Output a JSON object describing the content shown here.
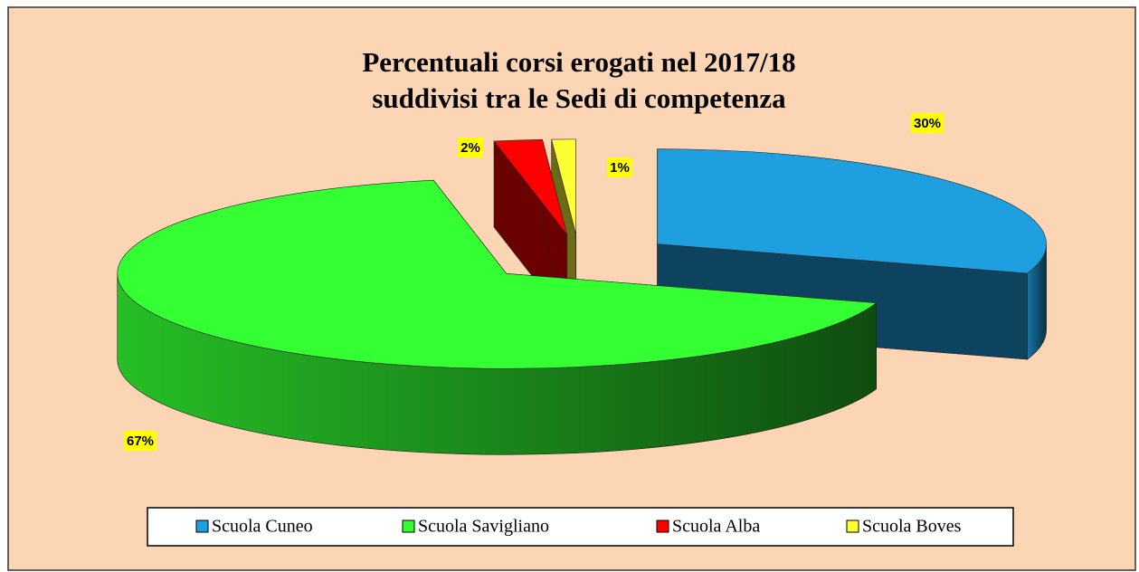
{
  "chart_data": {
    "type": "pie",
    "title": [
      "Percentuali corsi erogati nel 2017/18",
      "suddivisi tra le Sedi di competenza"
    ],
    "categories": [
      "Scuola Cuneo",
      "Scuola Savigliano",
      "Scuola Alba",
      "Scuola Boves"
    ],
    "values": [
      30,
      67,
      2,
      1
    ],
    "value_labels": [
      "30%",
      "67%",
      "2%",
      "1%"
    ],
    "colors": [
      "#1e9fe0",
      "#33ff33",
      "#ff0000",
      "#ffff33"
    ],
    "legend": "bottom"
  }
}
